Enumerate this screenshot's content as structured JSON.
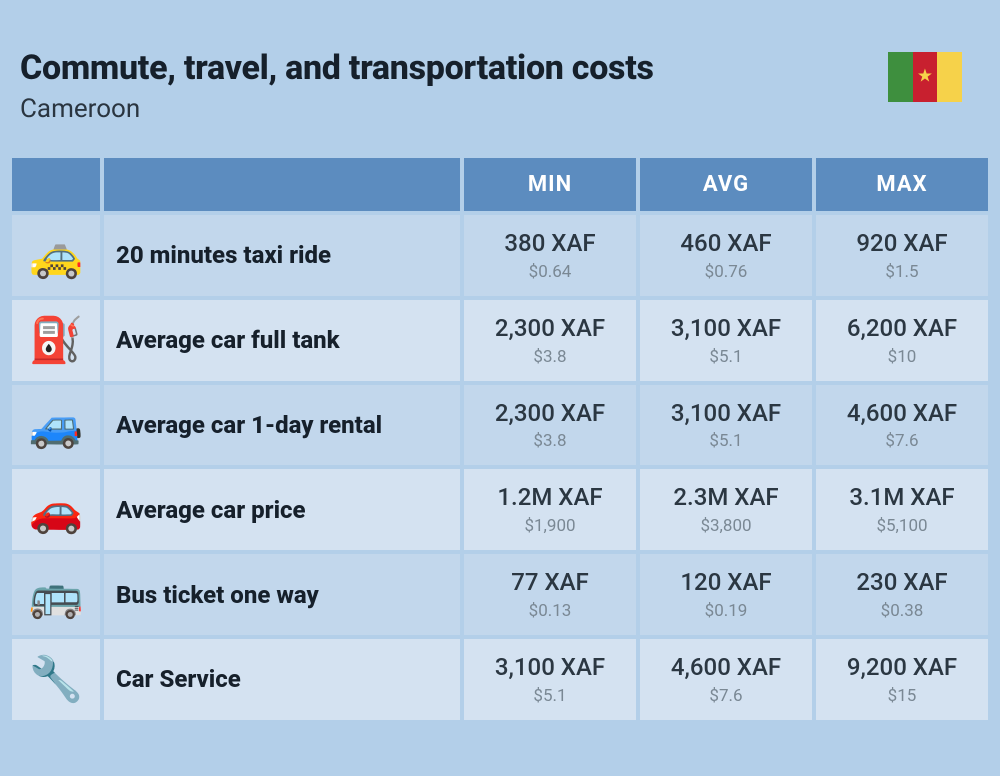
{
  "header": {
    "title": "Commute, travel, and transportation costs",
    "subtitle": "Cameroon",
    "flag_colors": [
      "#3e8f3e",
      "#c8202f",
      "#f6d24a"
    ],
    "flag_star_color": "#f6d24a"
  },
  "table": {
    "header_bg": "#5c8cbf",
    "header_text_color": "#ffffff",
    "row_even_bg": "#c2d7ec",
    "row_odd_bg": "#d4e2f1",
    "page_bg": "#b3cfe9",
    "columns": [
      "MIN",
      "AVG",
      "MAX"
    ],
    "primary_color": "#2b3742",
    "secondary_color": "#7a8894",
    "label_color": "#16202b",
    "title_fontsize": 34,
    "subtitle_fontsize": 26,
    "header_fontsize": 22,
    "label_fontsize": 24,
    "primary_fontsize": 24,
    "secondary_fontsize": 17
  },
  "rows": [
    {
      "icon": "🚕",
      "label": "20 minutes taxi ride",
      "min": {
        "p": "380 XAF",
        "s": "$0.64"
      },
      "avg": {
        "p": "460 XAF",
        "s": "$0.76"
      },
      "max": {
        "p": "920 XAF",
        "s": "$1.5"
      }
    },
    {
      "icon": "⛽",
      "label": "Average car full tank",
      "min": {
        "p": "2,300 XAF",
        "s": "$3.8"
      },
      "avg": {
        "p": "3,100 XAF",
        "s": "$5.1"
      },
      "max": {
        "p": "6,200 XAF",
        "s": "$10"
      }
    },
    {
      "icon": "🚙",
      "label": "Average car 1-day rental",
      "min": {
        "p": "2,300 XAF",
        "s": "$3.8"
      },
      "avg": {
        "p": "3,100 XAF",
        "s": "$5.1"
      },
      "max": {
        "p": "4,600 XAF",
        "s": "$7.6"
      }
    },
    {
      "icon": "🚗",
      "label": "Average car price",
      "min": {
        "p": "1.2M XAF",
        "s": "$1,900"
      },
      "avg": {
        "p": "2.3M XAF",
        "s": "$3,800"
      },
      "max": {
        "p": "3.1M XAF",
        "s": "$5,100"
      }
    },
    {
      "icon": "🚌",
      "label": "Bus ticket one way",
      "min": {
        "p": "77 XAF",
        "s": "$0.13"
      },
      "avg": {
        "p": "120 XAF",
        "s": "$0.19"
      },
      "max": {
        "p": "230 XAF",
        "s": "$0.38"
      }
    },
    {
      "icon": "🔧",
      "label": "Car Service",
      "min": {
        "p": "3,100 XAF",
        "s": "$5.1"
      },
      "avg": {
        "p": "4,600 XAF",
        "s": "$7.6"
      },
      "max": {
        "p": "9,200 XAF",
        "s": "$15"
      }
    }
  ]
}
